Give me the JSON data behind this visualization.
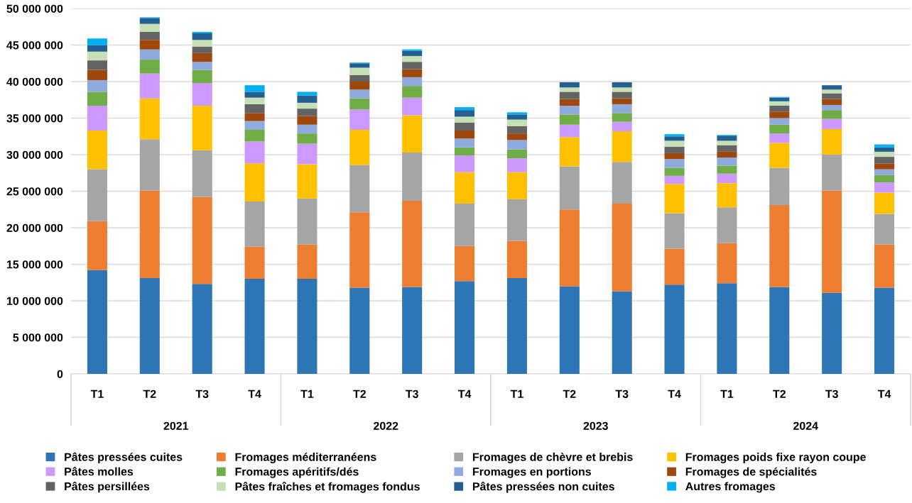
{
  "chart_data": {
    "type": "bar",
    "stacked": true,
    "categories": [
      "T1",
      "T2",
      "T3",
      "T4",
      "T1",
      "T2",
      "T3",
      "T4",
      "T1",
      "T2",
      "T3",
      "T4",
      "T1",
      "T2",
      "T3",
      "T4"
    ],
    "annotations": [
      "2021",
      "2022",
      "2023",
      "2024"
    ],
    "ylim": [
      0,
      50000000
    ],
    "yticks": [
      0,
      {
        "value": 5000000,
        "label": "5 000 000"
      },
      {
        "value": 10000000,
        "label": "10 000 000"
      },
      {
        "value": 15000000,
        "label": "15 000 000"
      },
      {
        "value": 20000000,
        "label": "20 000 000"
      },
      {
        "value": 25000000,
        "label": "25 000 000"
      },
      {
        "value": 30000000,
        "label": "30 000 000"
      },
      {
        "value": 35000000,
        "label": "35 000 000"
      },
      {
        "value": 40000000,
        "label": "40 000 000"
      },
      {
        "value": 45000000,
        "label": "45 000 000"
      },
      {
        "value": 50000000,
        "label": "50 000 000"
      }
    ],
    "grid": "y",
    "legend": "bottom",
    "series": [
      {
        "name": "Pâtes pressées cuites",
        "color": "#2e75b6",
        "values": [
          14200000,
          13100000,
          12300000,
          13000000,
          13000000,
          11800000,
          11900000,
          12700000,
          13100000,
          12000000,
          11300000,
          12200000,
          12400000,
          11900000,
          11100000,
          11800000
        ]
      },
      {
        "name": "Fromages méditerranéens",
        "color": "#ed7d31",
        "values": [
          6700000,
          12000000,
          11900000,
          4400000,
          4700000,
          10300000,
          11800000,
          4800000,
          5100000,
          10500000,
          12000000,
          4900000,
          5500000,
          11200000,
          14000000,
          5900000
        ]
      },
      {
        "name": "Fromages de chèvre et brebis",
        "color": "#a5a5a5",
        "values": [
          7100000,
          7000000,
          6400000,
          6200000,
          6300000,
          6500000,
          6600000,
          5800000,
          5700000,
          5900000,
          5700000,
          4900000,
          4900000,
          5100000,
          4900000,
          4200000
        ]
      },
      {
        "name": "Fromages poids fixe rayon coupe",
        "color": "#ffc000",
        "values": [
          5300000,
          5600000,
          6100000,
          5200000,
          4700000,
          4800000,
          5100000,
          4300000,
          3700000,
          4000000,
          4200000,
          4000000,
          3300000,
          3400000,
          3500000,
          2900000
        ]
      },
      {
        "name": "Pâtes molles",
        "color": "#cc99ff",
        "values": [
          3400000,
          3400000,
          3100000,
          3000000,
          2800000,
          2800000,
          2400000,
          2300000,
          1900000,
          1700000,
          1300000,
          1100000,
          1300000,
          1300000,
          1400000,
          1400000
        ]
      },
      {
        "name": "Fromages apéritifs/dés",
        "color": "#70ad47",
        "values": [
          1900000,
          1900000,
          1800000,
          1600000,
          1400000,
          1500000,
          1600000,
          1100000,
          1200000,
          1400000,
          1200000,
          1100000,
          1100000,
          1200000,
          1200000,
          1000000
        ]
      },
      {
        "name": "Fromages en portions",
        "color": "#8faadc",
        "values": [
          1600000,
          1400000,
          1100000,
          1200000,
          1200000,
          1200000,
          1200000,
          1200000,
          1300000,
          1200000,
          1200000,
          1200000,
          1100000,
          900000,
          700000,
          800000
        ]
      },
      {
        "name": "Fromages de spécialités",
        "color": "#9e480e",
        "values": [
          1400000,
          1300000,
          1200000,
          1100000,
          1200000,
          1100000,
          1100000,
          1100000,
          900000,
          900000,
          800000,
          800000,
          800000,
          900000,
          800000,
          800000
        ]
      },
      {
        "name": "Pâtes persillées",
        "color": "#636363",
        "values": [
          1300000,
          1100000,
          900000,
          1200000,
          1000000,
          900000,
          1000000,
          1100000,
          1000000,
          1000000,
          900000,
          900000,
          900000,
          800000,
          800000,
          900000
        ]
      },
      {
        "name": "Pâtes fraîches et fromages fondus",
        "color": "#c5e0b4",
        "values": [
          1200000,
          1100000,
          900000,
          900000,
          800000,
          1000000,
          800000,
          800000,
          900000,
          600000,
          600000,
          800000,
          600000,
          600000,
          500000,
          700000
        ]
      },
      {
        "name": "Pâtes pressées non cuites",
        "color": "#255e91",
        "values": [
          900000,
          800000,
          900000,
          800000,
          1000000,
          600000,
          700000,
          900000,
          700000,
          700000,
          700000,
          600000,
          700000,
          500000,
          600000,
          600000
        ]
      },
      {
        "name": "Autres fromages",
        "color": "#00b0f0",
        "values": [
          900000,
          100000,
          200000,
          900000,
          500000,
          100000,
          200000,
          400000,
          300000,
          0,
          0,
          300000,
          100000,
          100000,
          0,
          400000
        ]
      }
    ]
  }
}
